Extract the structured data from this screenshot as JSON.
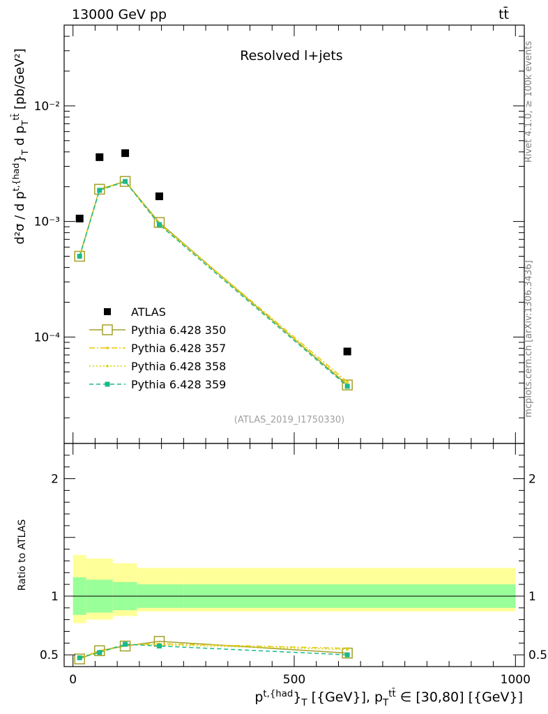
{
  "header": {
    "energy_label": "13000 GeV pp",
    "process_label": "tt̄"
  },
  "side_labels": {
    "rivet": "Rivet 4.1.0, ≥ 100k events",
    "mcplots": "mcplots.cern.ch [arXiv:1306.3436]"
  },
  "chart_data": {
    "type": "line",
    "title": "Resolved l+jets",
    "analysis_tag": "(ATLAS_2019_I1750330)",
    "ylabel_upper": "d²σ / d p^{t,{had}}_{T} d p_{T}^{tt̄} [pb/GeV²]",
    "ylabel_lower": "Ratio to ATLAS",
    "xlabel": "p^{t,{had}}_{T} [{GeV}], p_{T}^{tt̄} ∈ [30,80] [{GeV}]",
    "xlim": [
      -20,
      1020
    ],
    "ylim_upper": [
      1.2e-05,
      0.05
    ],
    "ylim_lower": [
      0.4,
      2.3
    ],
    "x_ticks": [
      0,
      500,
      1000
    ],
    "x_tick_labels": [
      "0",
      "500",
      "1000"
    ],
    "y_ticks_upper": [
      0.0001,
      0.001,
      0.01
    ],
    "y_tick_labels_upper": [
      "10⁻⁴",
      "10⁻³",
      "10⁻²"
    ],
    "y_ticks_lower": [
      0.5,
      1,
      2
    ],
    "y_tick_labels_lower": [
      "0.5",
      "1",
      "2"
    ],
    "x": [
      15,
      60,
      118,
      195,
      620
    ],
    "bin_edges": [
      0,
      30,
      90,
      145,
      250,
      1000
    ],
    "data": {
      "name": "ATLAS",
      "color": "#000000",
      "values": [
        0.00106,
        0.0036,
        0.0039,
        0.00165,
        7.5e-05
      ]
    },
    "series": [
      {
        "name": "Pythia 6.428 350",
        "color": "#a4a028",
        "style": "solid",
        "marker": "open-square",
        "values": [
          0.0005,
          0.0019,
          0.00222,
          0.00098,
          3.85e-05
        ],
        "ratio": [
          0.465,
          0.535,
          0.575,
          0.615,
          0.515
        ]
      },
      {
        "name": "Pythia 6.428 357",
        "color": "#e6c800",
        "style": "dashdot",
        "marker": "dot",
        "values": [
          0.00051,
          0.00188,
          0.00225,
          0.00096,
          4.1e-05
        ],
        "ratio": [
          0.48,
          0.53,
          0.585,
          0.595,
          0.555
        ]
      },
      {
        "name": "Pythia 6.428 358",
        "color": "#cfd400",
        "style": "dotted",
        "marker": "dot",
        "values": [
          0.00049,
          0.00186,
          0.00221,
          0.00094,
          3.95e-05
        ],
        "ratio": [
          0.47,
          0.525,
          0.585,
          0.585,
          0.545
        ]
      },
      {
        "name": "Pythia 6.428 359",
        "color": "#1ab98a",
        "style": "dashed",
        "marker": "filled-square",
        "values": [
          0.0005,
          0.00186,
          0.00222,
          0.00094,
          3.75e-05
        ],
        "ratio": [
          0.475,
          0.52,
          0.59,
          0.575,
          0.5
        ]
      }
    ],
    "ratio_band_inner": [
      [
        0.84,
        1.16
      ],
      [
        0.86,
        1.14
      ],
      [
        0.88,
        1.12
      ],
      [
        0.9,
        1.1
      ],
      [
        0.9,
        1.1
      ]
    ],
    "ratio_band_outer": [
      [
        0.77,
        1.35
      ],
      [
        0.8,
        1.32
      ],
      [
        0.83,
        1.28
      ],
      [
        0.87,
        1.24
      ],
      [
        0.87,
        1.24
      ]
    ],
    "legend_position": "center-left",
    "band_colors": {
      "inner": "#99ff99",
      "outer": "#ffff99"
    }
  }
}
